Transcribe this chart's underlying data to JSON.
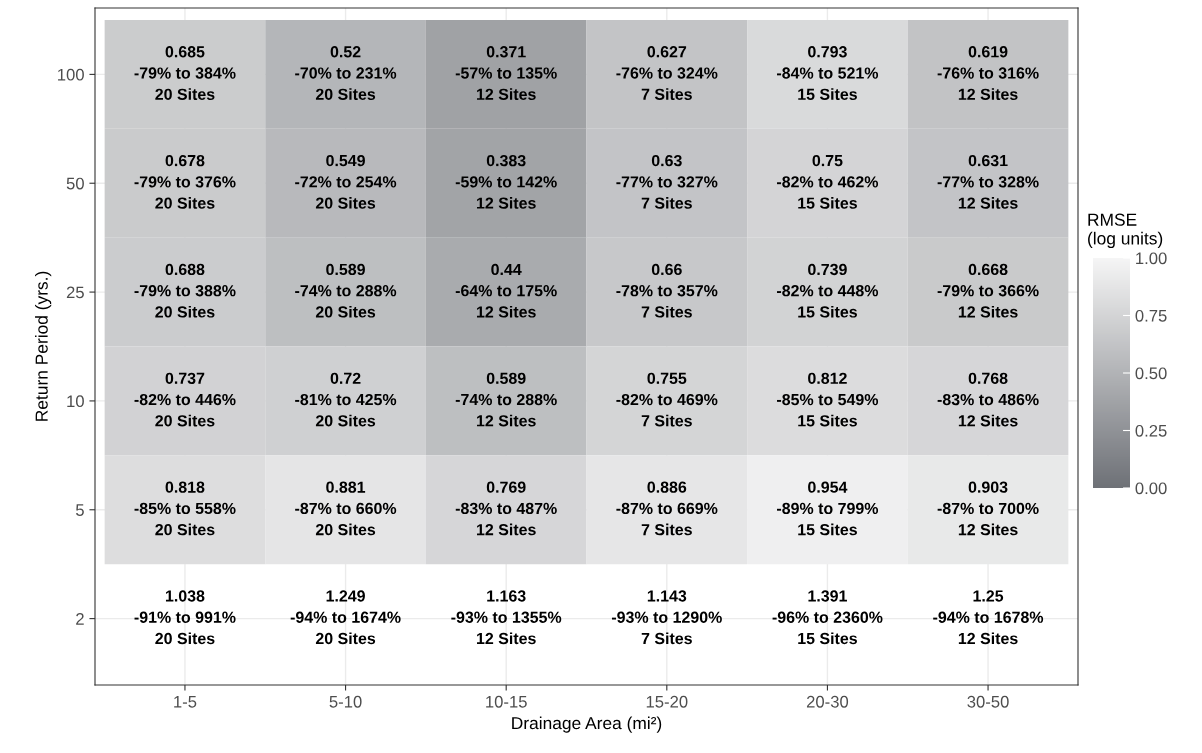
{
  "chart_data": {
    "type": "heatmap",
    "xlabel": "Drainage Area (mi²)",
    "ylabel": "Return Period (yrs.)",
    "clabel": "RMSE\n(log units)",
    "categories": [
      "1-5",
      "5-10",
      "10-15",
      "15-20",
      "20-30",
      "30-50"
    ],
    "y_categories": [
      "100",
      "50",
      "25",
      "10",
      "5",
      "2"
    ],
    "cells": [
      [
        0.685,
        0.52,
        0.371,
        0.627,
        0.793,
        0.619
      ],
      [
        0.678,
        0.549,
        0.383,
        0.63,
        0.75,
        0.631
      ],
      [
        0.688,
        0.589,
        0.44,
        0.66,
        0.739,
        0.668
      ],
      [
        0.737,
        0.72,
        0.589,
        0.755,
        0.812,
        0.768
      ],
      [
        0.818,
        0.881,
        0.769,
        0.886,
        0.954,
        0.903
      ],
      [
        1.038,
        1.249,
        1.163,
        1.143,
        1.391,
        1.25
      ]
    ],
    "cell_labels": [
      [
        "0.685\n-79% to 384%\n20 Sites",
        "0.52\n-70% to 231%\n20 Sites",
        "0.371\n-57% to 135%\n12 Sites",
        "0.627\n-76% to 324%\n7 Sites",
        "0.793\n-84% to 521%\n15 Sites",
        "0.619\n-76% to 316%\n12 Sites"
      ],
      [
        "0.678\n-79% to 376%\n20 Sites",
        "0.549\n-72% to 254%\n20 Sites",
        "0.383\n-59% to 142%\n12 Sites",
        "0.63\n-77% to 327%\n7 Sites",
        "0.75\n-82% to 462%\n15 Sites",
        "0.631\n-77% to 328%\n12 Sites"
      ],
      [
        "0.688\n-79% to 388%\n20 Sites",
        "0.589\n-74% to 288%\n20 Sites",
        "0.44\n-64% to 175%\n12 Sites",
        "0.66\n-78% to 357%\n7 Sites",
        "0.739\n-82% to 448%\n15 Sites",
        "0.668\n-79% to 366%\n12 Sites"
      ],
      [
        "0.737\n-82% to 446%\n20 Sites",
        "0.72\n-81% to 425%\n20 Sites",
        "0.589\n-74% to 288%\n12 Sites",
        "0.755\n-82% to 469%\n7 Sites",
        "0.812\n-85% to 549%\n15 Sites",
        "0.768\n-83% to 486%\n12 Sites"
      ],
      [
        "0.818\n-85% to 558%\n20 Sites",
        "0.881\n-87% to 660%\n20 Sites",
        "0.769\n-83% to 487%\n12 Sites",
        "0.886\n-87% to 669%\n7 Sites",
        "0.954\n-89% to 799%\n15 Sites",
        "0.903\n-87% to 700%\n12 Sites"
      ],
      [
        "1.038\n-91% to 991%\n20 Sites",
        "1.249\n-94% to 1674%\n20 Sites",
        "1.163\n-93% to 1355%\n12 Sites",
        "1.143\n-93% to 1290%\n7 Sites",
        "1.391\n-96% to 2360%\n15 Sites",
        "1.25\n-94% to 1678%\n12 Sites"
      ]
    ],
    "clim": [
      0,
      1
    ],
    "cticks": [
      {
        "value": 0,
        "label": "0.00"
      },
      {
        "value": 0.25,
        "label": "0.25"
      },
      {
        "value": 0.5,
        "label": "0.50"
      },
      {
        "value": 0.75,
        "label": "0.75"
      },
      {
        "value": 1,
        "label": "1.00"
      }
    ],
    "colors": [
      "#6e7177",
      "#f5f5f5"
    ],
    "grid": true
  }
}
